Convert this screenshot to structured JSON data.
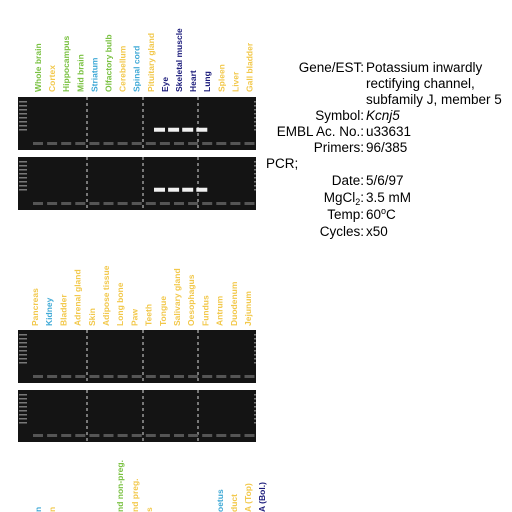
{
  "panel_1": {
    "lanes": [
      {
        "label": "Whole brain",
        "color": "#7ac142"
      },
      {
        "label": "Cortex",
        "color": "#f2c84b"
      },
      {
        "label": "Hippocampus",
        "color": "#7ac142"
      },
      {
        "label": "Mid brain",
        "color": "#7ac142"
      },
      {
        "label": "Striatum",
        "color": "#3fa9d6"
      },
      {
        "label": "Olfactory bulb",
        "color": "#7ac142"
      },
      {
        "label": "Cerebellum",
        "color": "#f2c84b"
      },
      {
        "label": "Spinal cord",
        "color": "#3fa9d6"
      },
      {
        "label": "Pituitary gland",
        "color": "#f2c84b"
      },
      {
        "label": "Eye",
        "color": "#1a1a7a"
      },
      {
        "label": "Skeletal muscle",
        "color": "#1a1a7a"
      },
      {
        "label": "Heart",
        "color": "#1a1a7a"
      },
      {
        "label": "Lung",
        "color": "#1a1a7a"
      },
      {
        "label": "Spleen",
        "color": "#f2c84b"
      },
      {
        "label": "Liver",
        "color": "#f2c84b"
      },
      {
        "label": "Gall bladder",
        "color": "#f2c84b"
      }
    ]
  },
  "panel_2": {
    "lanes": [
      {
        "label": "Pancreas",
        "color": "#f2c84b"
      },
      {
        "label": "Kidney",
        "color": "#3fa9d6"
      },
      {
        "label": "Bladder",
        "color": "#f2c84b"
      },
      {
        "label": "Adrenal gland",
        "color": "#f2c84b"
      },
      {
        "label": "Skin",
        "color": "#f2c84b"
      },
      {
        "label": "Adipose tissue",
        "color": "#f2c84b"
      },
      {
        "label": "Long bone",
        "color": "#f2c84b"
      },
      {
        "label": "Paw",
        "color": "#f2c84b"
      },
      {
        "label": "Teeth",
        "color": "#f2c84b"
      },
      {
        "label": "Tongue",
        "color": "#f2c84b"
      },
      {
        "label": "Salivary gland",
        "color": "#f2c84b"
      },
      {
        "label": "Oesophagus",
        "color": "#f2c84b"
      },
      {
        "label": "Fundus",
        "color": "#f2c84b"
      },
      {
        "label": "Antrum",
        "color": "#f2c84b"
      },
      {
        "label": "Duodenum",
        "color": "#f2c84b"
      },
      {
        "label": "Jejunum",
        "color": "#f2c84b"
      }
    ]
  },
  "panel_3": {
    "lanes": [
      {
        "label": "n",
        "color": "#3fa9d6"
      },
      {
        "label": "n",
        "color": "#f2c84b"
      },
      {
        "label": "nd non-preg.",
        "color": "#7ac142"
      },
      {
        "label": "nd preg.",
        "color": "#f2c84b"
      },
      {
        "label": "s",
        "color": "#f2c84b"
      },
      {
        "label": "oetus",
        "color": "#3fa9d6"
      },
      {
        "label": "duct",
        "color": "#f2c84b"
      },
      {
        "label": "A (Top)",
        "color": "#f2c84b"
      },
      {
        "label": "A (Bol.)",
        "color": "#1a1a7a"
      }
    ]
  },
  "info": {
    "gene_label": "Gene/EST:",
    "gene_lines": [
      "Potassium inwardly",
      "rectifying channel,",
      "subfamily J, member 5"
    ],
    "symbol_label": "Symbol:",
    "symbol": "Kcnj5",
    "embl_label": "EMBL Ac. No.:",
    "embl": "u33631",
    "primers_label": "Primers:",
    "primers": "96/385",
    "pcr_label": "PCR;",
    "date_label": "Date:",
    "date": "5/6/97",
    "mgcl_label": "MgCl",
    "mgcl_sub": "2",
    "mgcl_colon": ":",
    "mgcl": "3.5 mM",
    "temp_label": "Temp:",
    "temp": "60",
    "temp_sup": "o",
    "temp_unit": "C",
    "cycles_label": "Cycles:",
    "cycles": "x50"
  }
}
